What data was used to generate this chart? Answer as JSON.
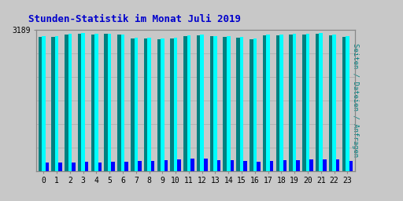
{
  "title": "Stunden-Statistik im Monat Juli 2019",
  "ylabel": "Seiten / Dateien / Anfragen",
  "hours": [
    0,
    1,
    2,
    3,
    4,
    5,
    6,
    7,
    8,
    9,
    10,
    11,
    12,
    13,
    14,
    15,
    16,
    17,
    18,
    19,
    20,
    21,
    22,
    23
  ],
  "seiten": [
    3040,
    3035,
    3095,
    3110,
    3095,
    3100,
    3082,
    3000,
    2992,
    2988,
    3005,
    3055,
    3072,
    3045,
    3030,
    3012,
    2980,
    3072,
    3078,
    3085,
    3095,
    3115,
    3072,
    3035
  ],
  "dateien": [
    3060,
    3048,
    3108,
    3125,
    3112,
    3105,
    3092,
    3015,
    3010,
    3002,
    3022,
    3072,
    3082,
    3062,
    3045,
    3030,
    2995,
    3095,
    3098,
    3100,
    3115,
    3128,
    3092,
    3050
  ],
  "anfragen": [
    195,
    182,
    195,
    210,
    195,
    200,
    215,
    220,
    230,
    245,
    265,
    282,
    272,
    250,
    235,
    230,
    215,
    230,
    240,
    250,
    260,
    268,
    258,
    228
  ],
  "bar_color_seiten": "#008080",
  "bar_color_dateien": "#00FFFF",
  "bar_color_anfragen": "#0000FF",
  "background_color": "#C8C8C8",
  "plot_bg_color": "#C8C8C8",
  "title_color": "#0000CC",
  "ylabel_color": "#008080",
  "ylim_max": 3189,
  "ylim_min": 0,
  "grid_color": "#AAAAAA",
  "num_gridlines": 6
}
